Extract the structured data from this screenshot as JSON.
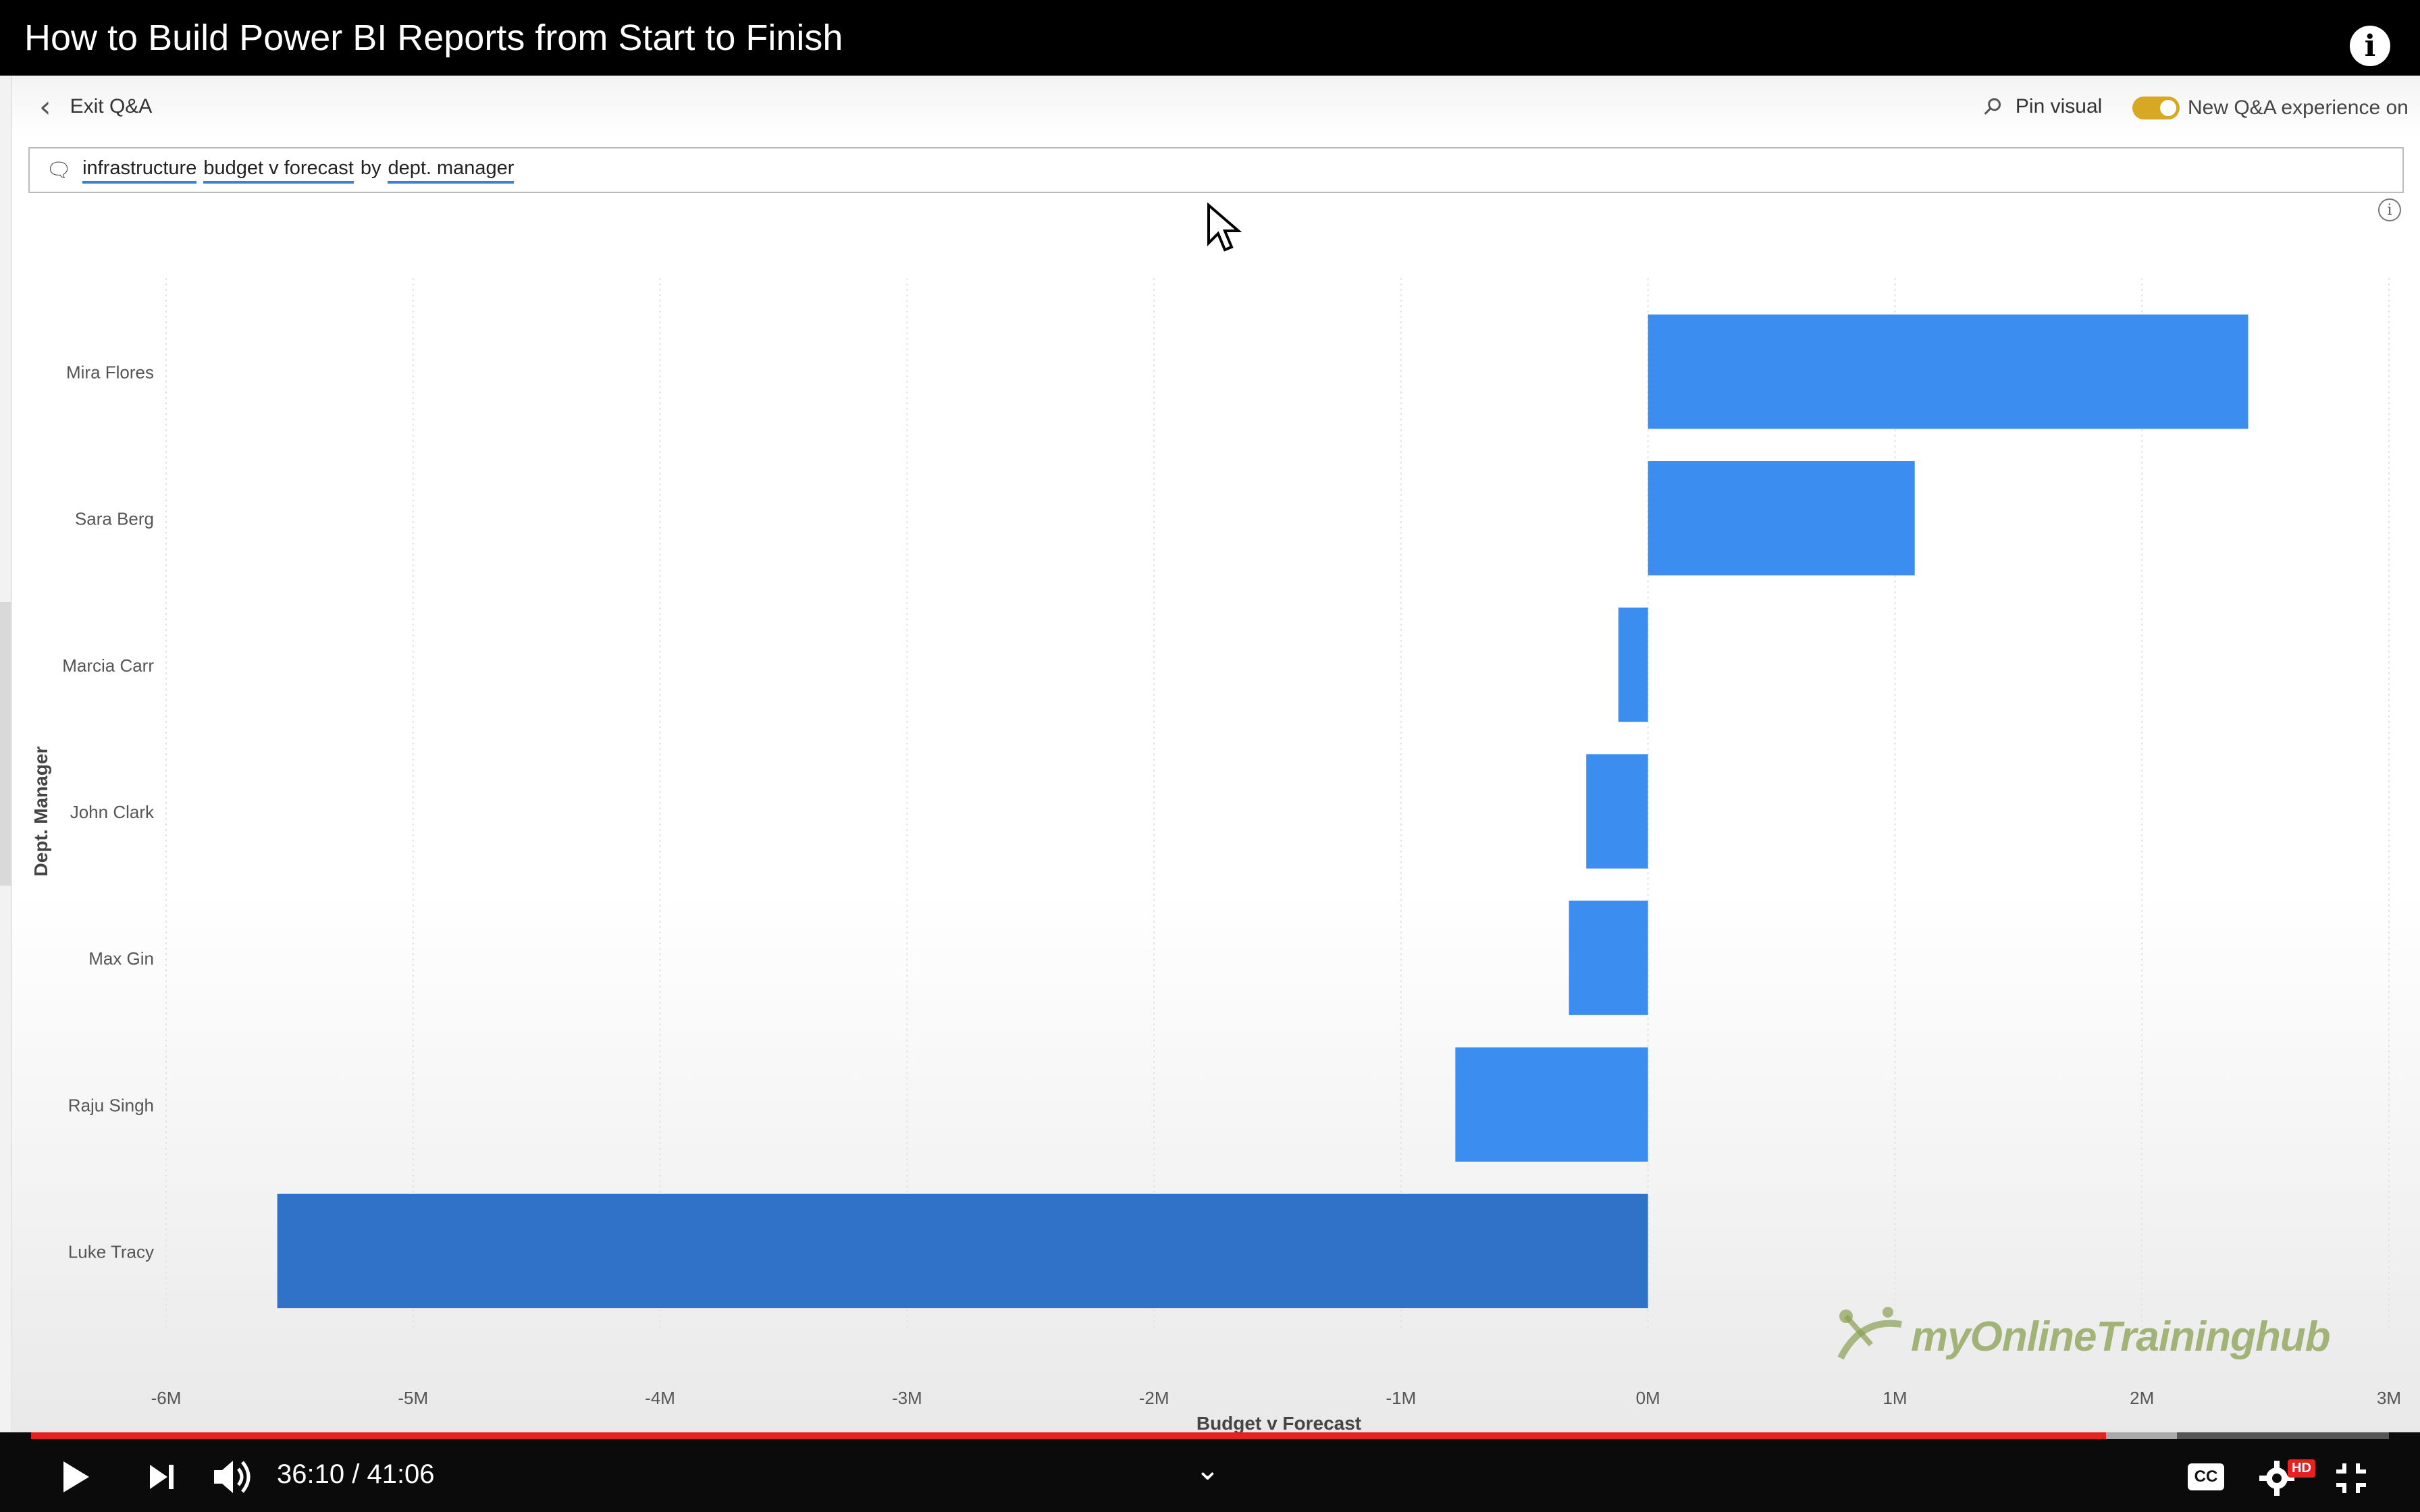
{
  "video": {
    "title": "How to Build Power BI Reports from Start to Finish",
    "current_time": "36:10",
    "duration": "41:06",
    "time_separator": " / ",
    "played_fraction": 0.88,
    "loaded_fraction": 0.91
  },
  "toolbar": {
    "exit_label": "Exit Q&A",
    "pin_label": "Pin visual",
    "toggle_label": "New Q&A experience on"
  },
  "qa": {
    "terms": [
      "infrastructure",
      "budget v forecast",
      "by",
      "dept. manager"
    ],
    "underlined": [
      true,
      true,
      false,
      true
    ]
  },
  "watermark": {
    "text": "myOnlineTraininghub"
  },
  "colors": {
    "bar": "#3b8def",
    "bar_dark": "#2f72c8",
    "accent_toggle": "#d6a823",
    "progress": "#e52222"
  },
  "chart_data": {
    "type": "bar",
    "orientation": "horizontal",
    "categories": [
      "Mira Flores",
      "Sara Berg",
      "Marcia Carr",
      "John Clark",
      "Max Gin",
      "Raju Singh",
      "Luke Tracy"
    ],
    "values": [
      2.43,
      1.08,
      -0.12,
      -0.25,
      -0.32,
      -0.78,
      -5.55
    ],
    "xlabel": "Budget v Forecast",
    "ylabel": "Dept. Manager",
    "xlim": [
      -6,
      3
    ],
    "ticks": [
      -6,
      -5,
      -4,
      -3,
      -2,
      -1,
      0,
      1,
      2,
      3
    ],
    "tick_labels": [
      "-6M",
      "-5M",
      "-4M",
      "-3M",
      "-2M",
      "-1M",
      "0M",
      "1M",
      "2M",
      "3M"
    ],
    "grid": true
  }
}
